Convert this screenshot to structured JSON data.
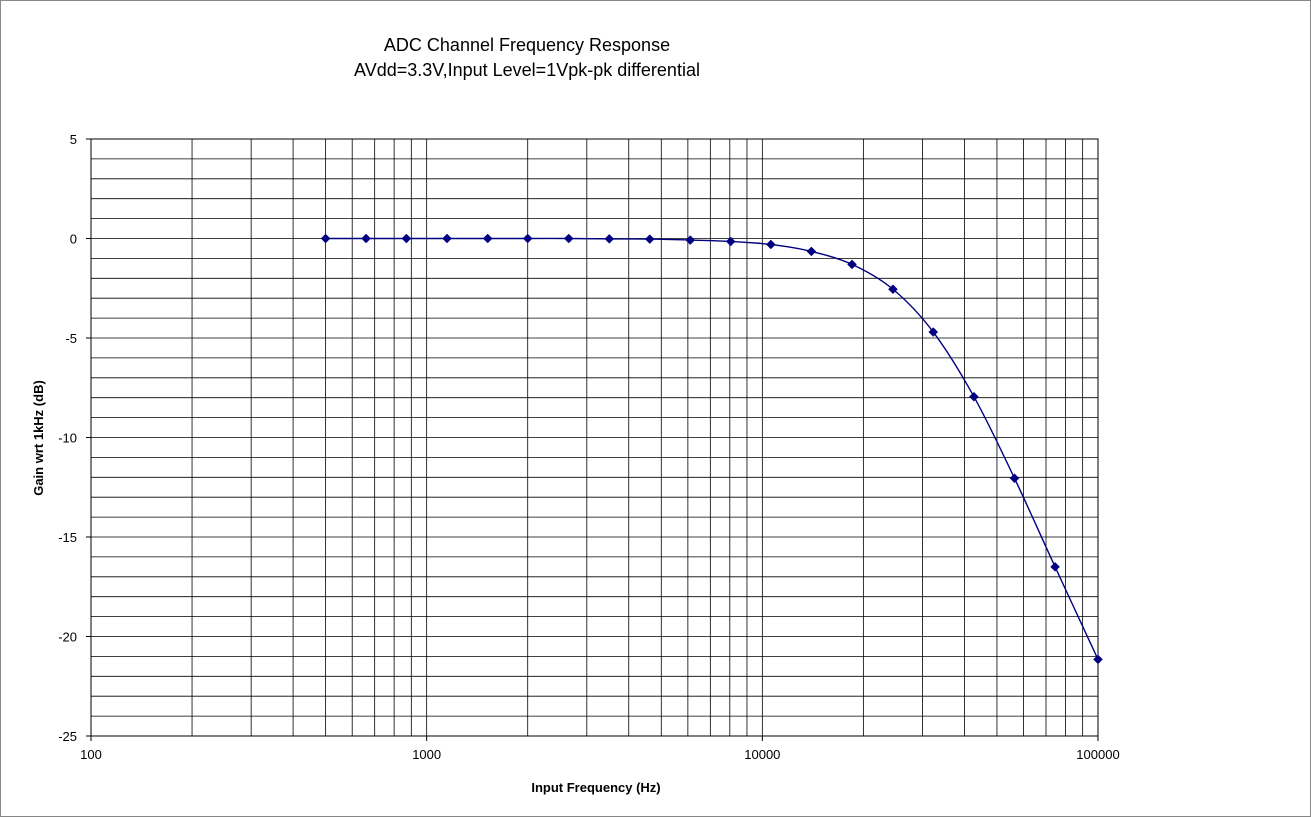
{
  "chart_data": {
    "type": "line",
    "title": "ADC Channel Frequency Response",
    "subtitle": "AVdd=3.3V,Input  Level=1Vpk-pk  differential",
    "xlabel": "Input Frequency (Hz)",
    "ylabel": "Gain wrt 1kHz (dB)",
    "x_scale": "log",
    "xlim": [
      100,
      100000
    ],
    "ylim": [
      -25,
      5
    ],
    "x_ticks": [
      100,
      1000,
      10000,
      100000
    ],
    "x_tick_labels": [
      "100",
      "1000",
      "10000",
      "100000"
    ],
    "y_ticks": [
      5,
      0,
      -5,
      -10,
      -15,
      -20,
      -25
    ],
    "y_tick_labels": [
      "5",
      "0",
      "-5",
      "-10",
      "-15",
      "-20",
      "-25"
    ],
    "y_minor_step": 1,
    "grid": true,
    "legend": "none",
    "series": [
      {
        "color": "#000080",
        "marker": "diamond",
        "smooth": true,
        "x": [
          500,
          660,
          870,
          1150,
          1520,
          2000,
          2650,
          3500,
          4620,
          6100,
          8050,
          10600,
          14000,
          18500,
          24500,
          32300,
          42700,
          56400,
          74500,
          100000
        ],
        "y": [
          0,
          0,
          0,
          0,
          0,
          0,
          0,
          -0.02,
          -0.03,
          -0.08,
          -0.15,
          -0.3,
          -0.65,
          -1.3,
          -2.55,
          -4.7,
          -7.95,
          -12.05,
          -16.5,
          -21.15
        ]
      }
    ]
  }
}
